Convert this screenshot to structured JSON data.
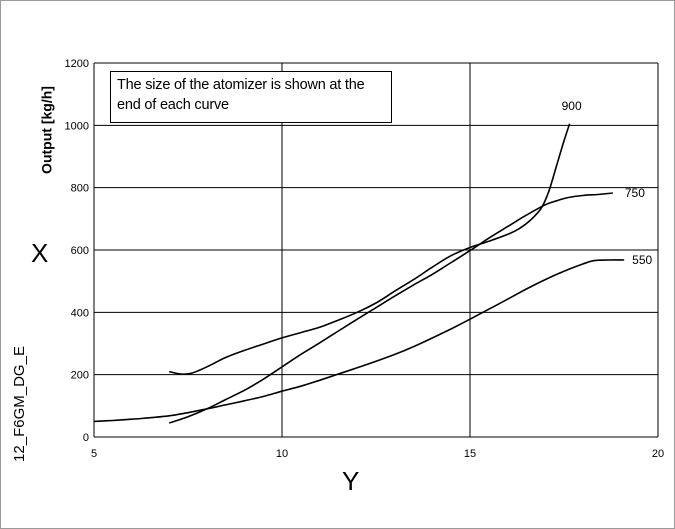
{
  "chart_data": {
    "type": "line",
    "ylabel": "Output [kg/h]",
    "x_axis_letter": "Y",
    "y_axis_letter": "X",
    "figure_id": "12_F6GM_DG_E",
    "annotation": "The size of the atomizer is shown at the end of each curve",
    "xlim": [
      5,
      20
    ],
    "ylim": [
      0,
      1200
    ],
    "x_ticks": [
      5,
      10,
      15,
      20
    ],
    "y_ticks": [
      0,
      200,
      400,
      600,
      800,
      1000,
      1200
    ],
    "grid": true,
    "series": [
      {
        "name": "900",
        "points": [
          [
            7.0,
            210
          ],
          [
            7.3,
            202
          ],
          [
            7.6,
            205
          ],
          [
            8.0,
            225
          ],
          [
            8.5,
            255
          ],
          [
            9.0,
            278
          ],
          [
            9.5,
            298
          ],
          [
            10.0,
            318
          ],
          [
            10.5,
            335
          ],
          [
            11.0,
            352
          ],
          [
            11.5,
            375
          ],
          [
            12.0,
            400
          ],
          [
            12.5,
            430
          ],
          [
            13.0,
            468
          ],
          [
            13.5,
            505
          ],
          [
            14.0,
            545
          ],
          [
            14.5,
            582
          ],
          [
            15.0,
            608
          ],
          [
            15.5,
            628
          ],
          [
            16.0,
            650
          ],
          [
            16.3,
            668
          ],
          [
            16.6,
            695
          ],
          [
            16.9,
            735
          ],
          [
            17.1,
            790
          ],
          [
            17.3,
            870
          ],
          [
            17.5,
            950
          ],
          [
            17.65,
            1005
          ]
        ]
      },
      {
        "name": "750",
        "points": [
          [
            7.0,
            45
          ],
          [
            7.5,
            65
          ],
          [
            8.0,
            90
          ],
          [
            8.5,
            120
          ],
          [
            9.0,
            150
          ],
          [
            9.5,
            185
          ],
          [
            10.0,
            225
          ],
          [
            10.5,
            265
          ],
          [
            11.0,
            302
          ],
          [
            11.5,
            340
          ],
          [
            12.0,
            378
          ],
          [
            12.5,
            415
          ],
          [
            13.0,
            452
          ],
          [
            13.5,
            488
          ],
          [
            14.0,
            522
          ],
          [
            14.5,
            560
          ],
          [
            15.0,
            598
          ],
          [
            15.5,
            638
          ],
          [
            16.0,
            675
          ],
          [
            16.5,
            712
          ],
          [
            17.0,
            745
          ],
          [
            17.3,
            758
          ],
          [
            17.6,
            768
          ],
          [
            18.0,
            775
          ],
          [
            18.4,
            778
          ],
          [
            18.8,
            783
          ]
        ]
      },
      {
        "name": "550",
        "points": [
          [
            5.0,
            50
          ],
          [
            5.5,
            53
          ],
          [
            6.0,
            57
          ],
          [
            6.5,
            62
          ],
          [
            7.0,
            68
          ],
          [
            7.5,
            78
          ],
          [
            8.0,
            90
          ],
          [
            8.5,
            103
          ],
          [
            9.0,
            116
          ],
          [
            9.5,
            130
          ],
          [
            10.0,
            147
          ],
          [
            10.5,
            163
          ],
          [
            11.0,
            182
          ],
          [
            11.5,
            202
          ],
          [
            12.0,
            222
          ],
          [
            12.5,
            243
          ],
          [
            13.0,
            265
          ],
          [
            13.5,
            290
          ],
          [
            14.0,
            318
          ],
          [
            14.5,
            347
          ],
          [
            15.0,
            378
          ],
          [
            15.5,
            410
          ],
          [
            16.0,
            442
          ],
          [
            16.5,
            475
          ],
          [
            17.0,
            505
          ],
          [
            17.5,
            532
          ],
          [
            18.0,
            555
          ],
          [
            18.3,
            566
          ],
          [
            18.7,
            568
          ],
          [
            19.1,
            568
          ]
        ]
      }
    ]
  }
}
